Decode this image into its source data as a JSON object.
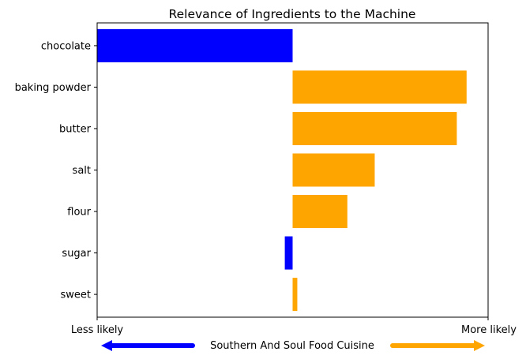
{
  "chart_data": {
    "type": "bar",
    "orientation": "horizontal",
    "title": "Relevance of Ingredients to the Machine",
    "categories": [
      "chocolate",
      "baking powder",
      "butter",
      "salt",
      "flour",
      "sugar",
      "sweet"
    ],
    "values": [
      -0.5,
      0.445,
      0.42,
      0.21,
      0.14,
      -0.02,
      0.012
    ],
    "xlim": [
      -0.5,
      0.5
    ],
    "grid": false,
    "x_tick_labels": {
      "left": "Less likely",
      "right": "More likely"
    },
    "legend": {
      "label": "Southern And Soul Food Cuisine",
      "placement": "bottom-center",
      "left_arrow_color": "#0000ff",
      "right_arrow_color": "#ffa500"
    },
    "colors": {
      "negative": "#0000ff",
      "positive": "#ffa500"
    }
  }
}
